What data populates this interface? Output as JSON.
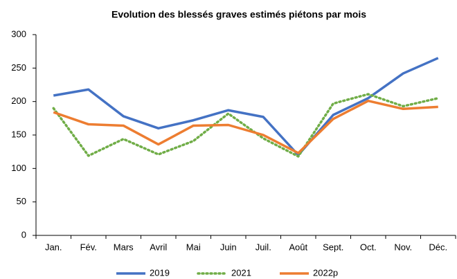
{
  "chart_data": {
    "type": "line",
    "title": "Evolution des blessés graves estimés piétons par mois",
    "categories": [
      "Jan.",
      "Fév.",
      "Mars",
      "Avril",
      "Mai",
      "Juin",
      "Juil.",
      "Août",
      "Sept.",
      "Oct.",
      "Nov.",
      "Déc."
    ],
    "series": [
      {
        "name": "2019",
        "color": "#4472c4",
        "dash": "solid",
        "values": [
          209,
          218,
          178,
          160,
          172,
          187,
          177,
          120,
          180,
          205,
          242,
          265
        ]
      },
      {
        "name": "2021",
        "color": "#70ad47",
        "dash": "dotted",
        "values": [
          190,
          119,
          144,
          121,
          141,
          182,
          145,
          118,
          197,
          211,
          193,
          205
        ]
      },
      {
        "name": "2022p",
        "color": "#ed7d31",
        "dash": "solid",
        "values": [
          184,
          166,
          164,
          136,
          164,
          165,
          150,
          123,
          174,
          201,
          189,
          192
        ]
      }
    ],
    "ylim": [
      0,
      300
    ],
    "yticks": [
      0,
      50,
      100,
      150,
      200,
      250,
      300
    ],
    "grid": false,
    "legend": "bottom"
  }
}
